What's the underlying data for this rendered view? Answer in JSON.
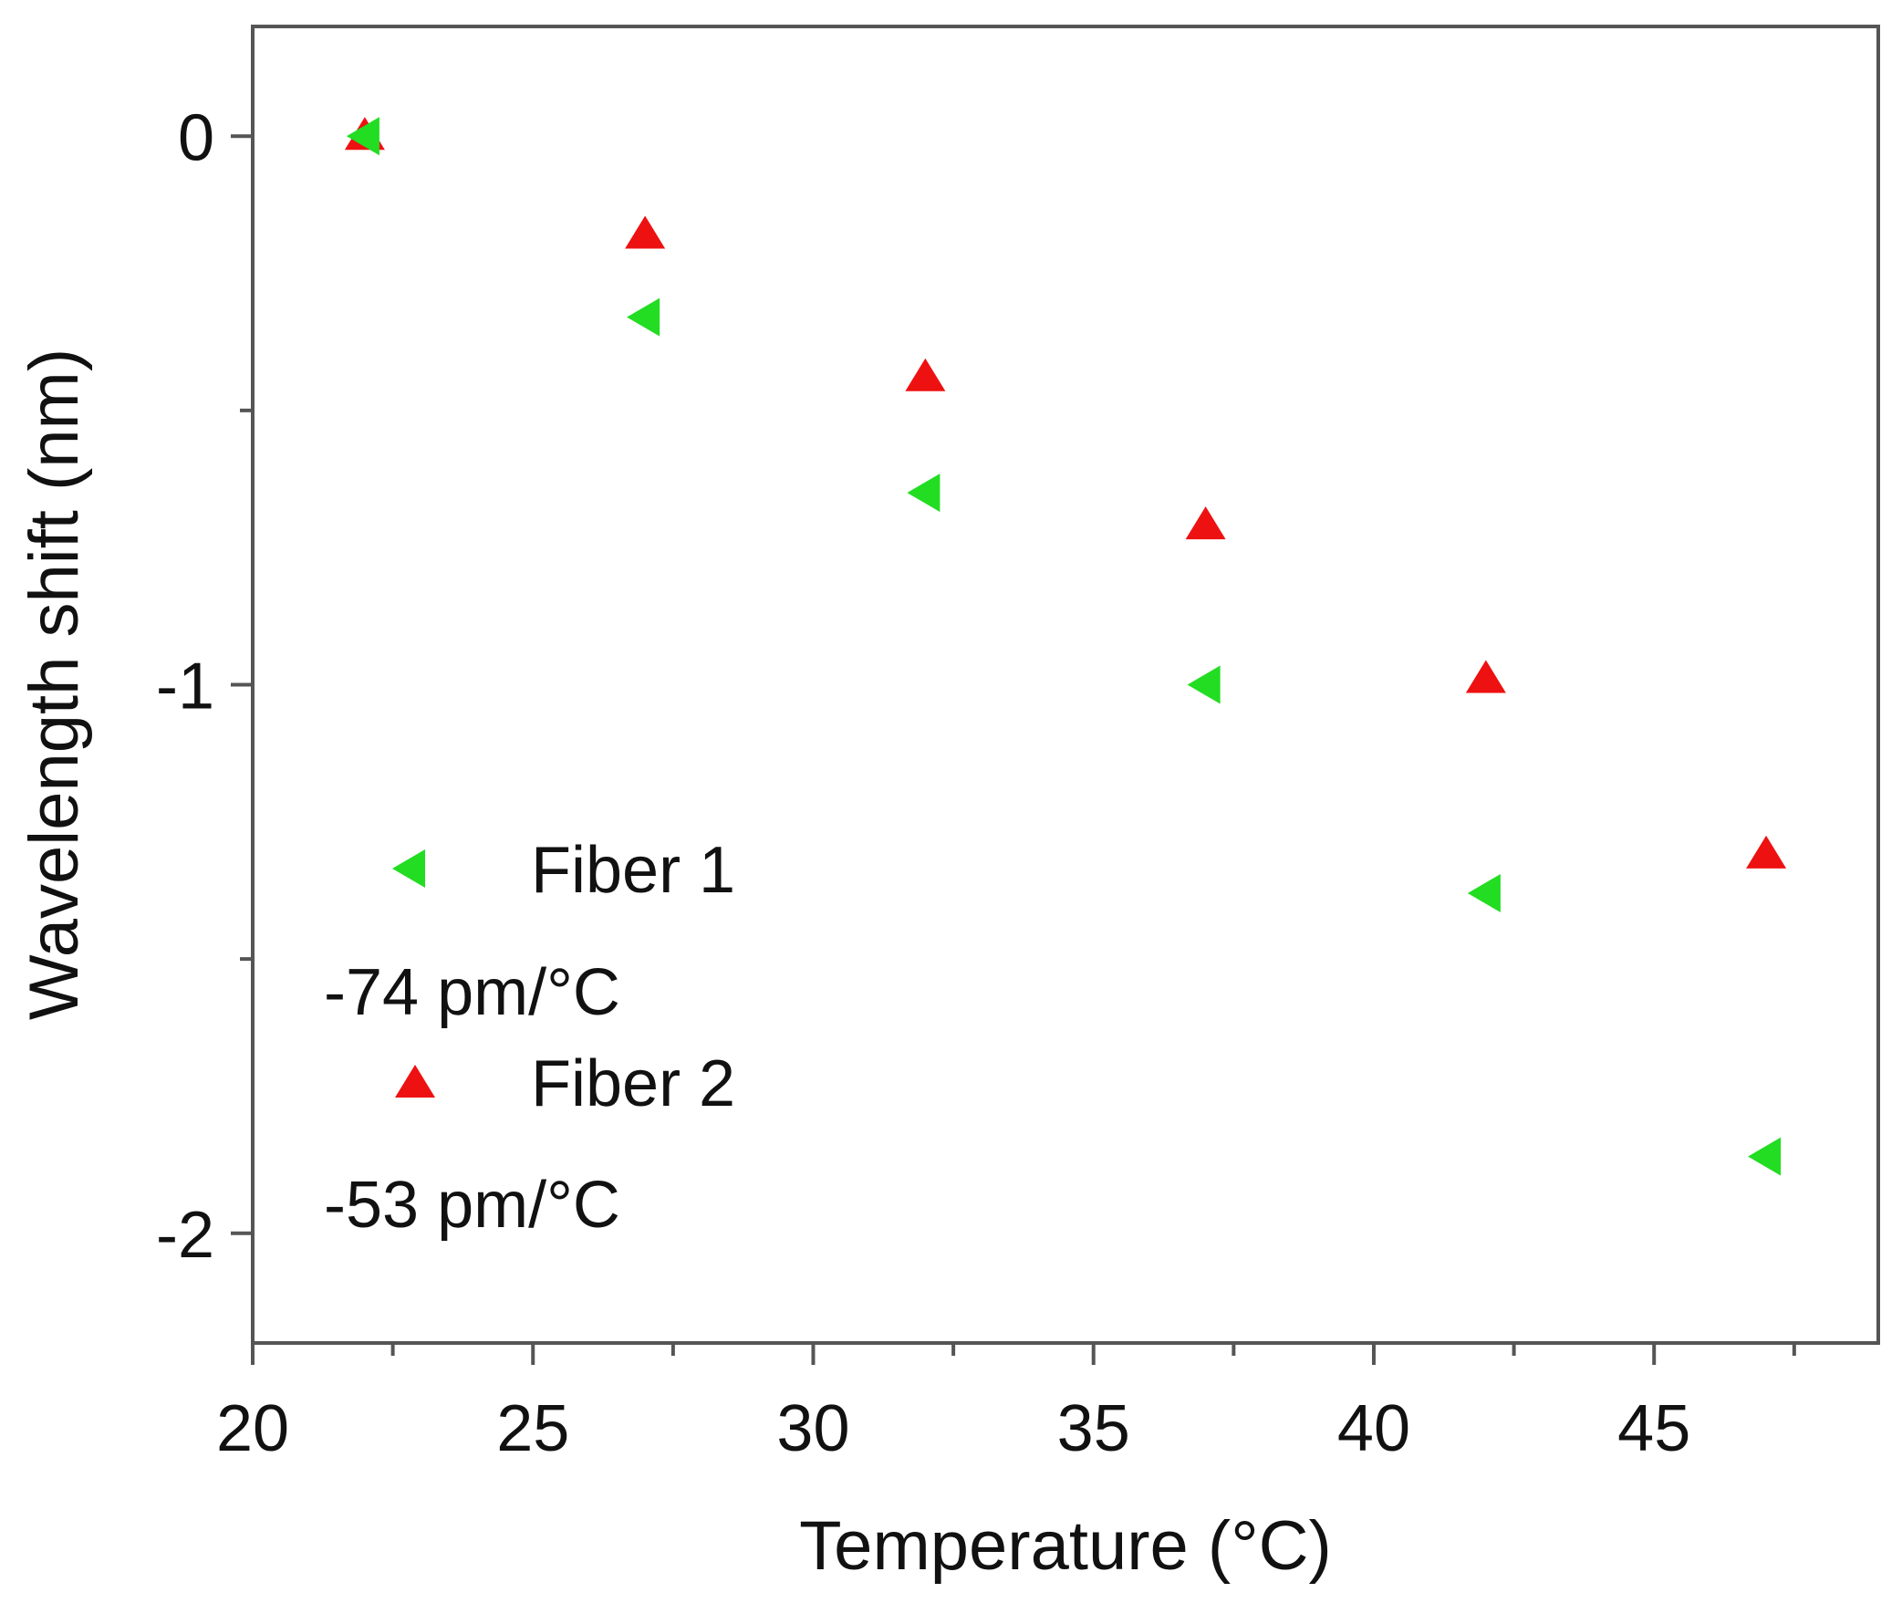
{
  "chart_data": {
    "type": "scatter",
    "title": "",
    "xlabel": "Temperature (°C)",
    "ylabel": "Wavelength shift (nm)",
    "xlim": [
      20,
      49
    ],
    "ylim": [
      -2.2,
      0.2
    ],
    "xticks": [
      20,
      25,
      30,
      35,
      40,
      45
    ],
    "xtick_labels": [
      "20",
      "25",
      "30",
      "35",
      "40",
      "45"
    ],
    "xminor_ticks": [
      22.5,
      27.5,
      32.5,
      37.5,
      42.5,
      47.5
    ],
    "yticks": [
      0,
      -1,
      -2
    ],
    "ytick_labels": [
      "0",
      "-1",
      "-2"
    ],
    "yminor_ticks": [
      -0.5,
      -1.5
    ],
    "grid": false,
    "legend_position": "bottom-left",
    "series": [
      {
        "name": "Fiber 1",
        "slope_label": "-74 pm/°C",
        "marker": "left-triangle",
        "color": "#22dd22",
        "x": [
          22,
          27,
          32,
          37,
          42,
          47
        ],
        "y": [
          0,
          -0.33,
          -0.65,
          -1.0,
          -1.38,
          -1.86
        ]
      },
      {
        "name": "Fiber 2",
        "slope_label": "-53 pm/°C",
        "marker": "up-triangle",
        "color": "#ee1111",
        "x": [
          22,
          27,
          32,
          37,
          42,
          47
        ],
        "y": [
          0,
          -0.18,
          -0.44,
          -0.71,
          -0.99,
          -1.31
        ]
      }
    ]
  }
}
